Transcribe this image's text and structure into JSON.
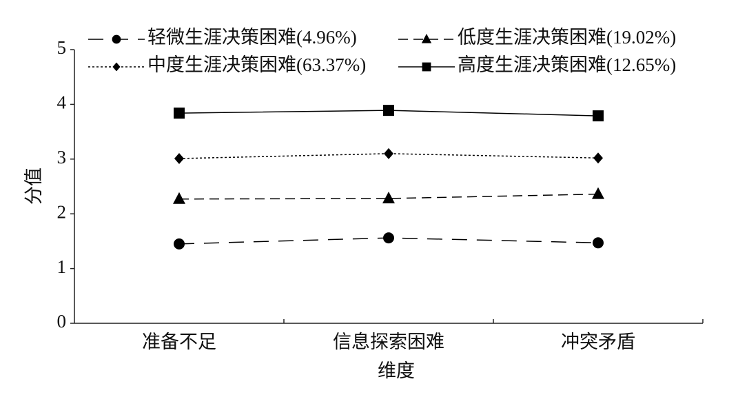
{
  "chart_data": {
    "type": "line",
    "x_label": "维度",
    "y_label": "分值",
    "categories": [
      "准备不足",
      "信息探索困难",
      "冲突矛盾"
    ],
    "series": [
      {
        "name": "轻微生涯决策困难(4.96%)",
        "color": "#000000",
        "linestyle": "longdash",
        "marker": "circle",
        "values": [
          1.45,
          1.56,
          1.47
        ]
      },
      {
        "name": "低度生涯决策困难(19.02%)",
        "color": "#000000",
        "linestyle": "dash",
        "marker": "triangle",
        "values": [
          2.27,
          2.28,
          2.36
        ]
      },
      {
        "name": "中度生涯决策困难(63.37%)",
        "color": "#000000",
        "linestyle": "dot",
        "marker": "diamond",
        "values": [
          3.01,
          3.1,
          3.02
        ]
      },
      {
        "name": "高度生涯决策困难(12.65%)",
        "color": "#000000",
        "linestyle": "solid",
        "marker": "square",
        "values": [
          3.84,
          3.89,
          3.79
        ]
      }
    ],
    "ylim": [
      0,
      5
    ],
    "yticks": [
      0,
      1,
      2,
      3,
      4,
      5
    ],
    "grid": false
  }
}
